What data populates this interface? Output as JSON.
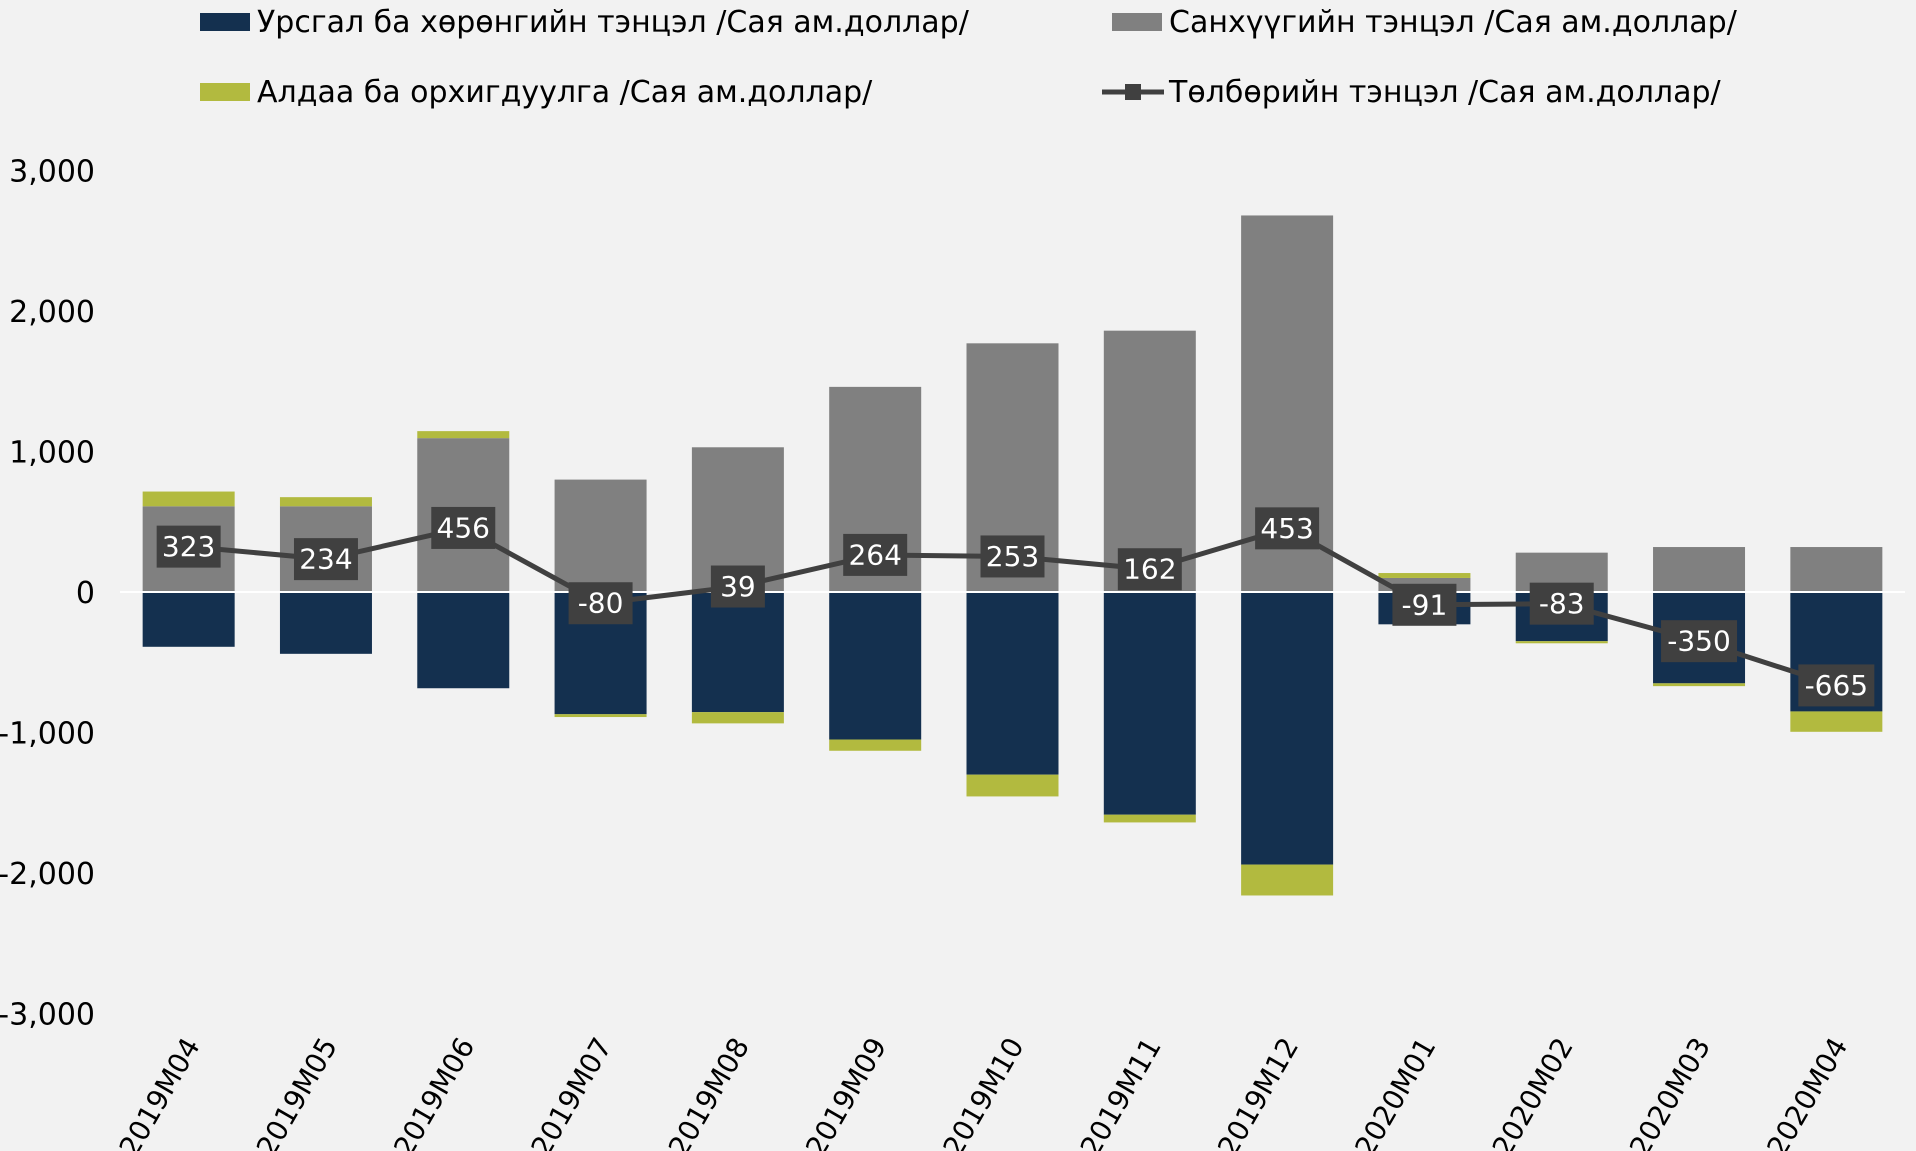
{
  "chart_data": {
    "type": "bar",
    "stacked": true,
    "categories": [
      "2019M04",
      "2019M05",
      "2019M06",
      "2019M07",
      "2019M08",
      "2019M09",
      "2019M10",
      "2019M11",
      "2019M12",
      "2020M01",
      "2020M02",
      "2020M03",
      "2020M04"
    ],
    "series": [
      {
        "name": "Урсгал ба хөрөнгийн тэнцэл /Сая ам.доллар/",
        "kind": "bar",
        "color": "#14304f",
        "values": [
          -390,
          -440,
          -685,
          -870,
          -855,
          -1050,
          -1300,
          -1585,
          -1940,
          -230,
          -350,
          -650,
          -850
        ]
      },
      {
        "name": "Санхүүгийн тэнцэл /Сая ам.доллар/",
        "kind": "bar",
        "color": "#808080",
        "values": [
          610,
          610,
          1095,
          800,
          1030,
          1460,
          1770,
          1860,
          2680,
          100,
          280,
          320,
          320
        ]
      },
      {
        "name": "Алдаа ба орхигдуулга /Сая ам.доллар/",
        "kind": "bar",
        "color": "#b2ba3f",
        "values": [
          105,
          65,
          50,
          -20,
          -80,
          -80,
          -155,
          -55,
          -220,
          35,
          -15,
          -20,
          -145
        ]
      },
      {
        "name": "Төлбөрийн тэнцэл /Сая ам.доллар/",
        "kind": "line",
        "color": "#404040",
        "values": [
          323,
          234,
          456,
          -80,
          39,
          264,
          253,
          162,
          453,
          -91,
          -83,
          -350,
          -665
        ],
        "labels": [
          "323",
          "234",
          "456",
          "-80",
          "39",
          "264",
          "253",
          "162",
          "453",
          "-91",
          "-83",
          "-350",
          "-665"
        ]
      }
    ],
    "y_ticks": [
      "3,000",
      "2,000",
      "1,000",
      "0",
      "-1,000",
      "-2,000",
      "-3,000"
    ],
    "ylim": [
      -3000,
      3000
    ],
    "legend_position": "top",
    "grid": false
  }
}
